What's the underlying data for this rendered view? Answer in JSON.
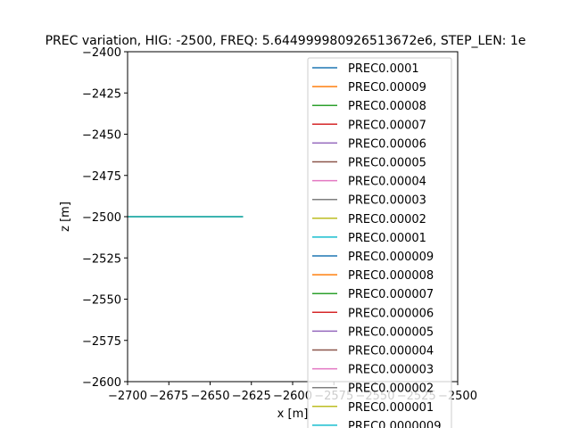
{
  "chart_data": {
    "type": "line",
    "title": "PREC variation, HIG: -2500, FREQ: 5.644999980926513672e6, STEP_LEN: 1e",
    "xlabel": "x [m]",
    "ylabel": "z [m]",
    "xlim": [
      -2700,
      -2500
    ],
    "ylim": [
      -2600,
      -2400
    ],
    "xticks": [
      -2700,
      -2675,
      -2650,
      -2625,
      -2600,
      -2575,
      -2550,
      -2525,
      -2500
    ],
    "xtick_labels": [
      "−2700",
      "−2675",
      "−2650",
      "−2625",
      "−2600",
      "−2575",
      "−2550",
      "−2525",
      "−2500"
    ],
    "yticks": [
      -2400,
      -2425,
      -2450,
      -2475,
      -2500,
      -2525,
      -2550,
      -2575,
      -2600
    ],
    "ytick_labels": [
      "−2400",
      "−2425",
      "−2450",
      "−2475",
      "−2500",
      "−2525",
      "−2550",
      "−2575",
      "−2600"
    ],
    "grid": false,
    "legend_position": "top-right",
    "series": [
      {
        "name": "PREC0.0001",
        "color": "#1f77b4",
        "x": [
          -2700,
          -2630
        ],
        "y": [
          -2500,
          -2500
        ]
      },
      {
        "name": "PREC0.00009",
        "color": "#ff7f0e",
        "x": [
          -2700,
          -2630
        ],
        "y": [
          -2500,
          -2500
        ]
      },
      {
        "name": "PREC0.00008",
        "color": "#2ca02c",
        "x": [
          -2700,
          -2630
        ],
        "y": [
          -2500,
          -2500
        ]
      },
      {
        "name": "PREC0.00007",
        "color": "#d62728",
        "x": [
          -2700,
          -2630
        ],
        "y": [
          -2500,
          -2500
        ]
      },
      {
        "name": "PREC0.00006",
        "color": "#9467bd",
        "x": [
          -2700,
          -2630
        ],
        "y": [
          -2500,
          -2500
        ]
      },
      {
        "name": "PREC0.00005",
        "color": "#8c564b",
        "x": [
          -2700,
          -2630
        ],
        "y": [
          -2500,
          -2500
        ]
      },
      {
        "name": "PREC0.00004",
        "color": "#e377c2",
        "x": [
          -2700,
          -2630
        ],
        "y": [
          -2500,
          -2500
        ]
      },
      {
        "name": "PREC0.00003",
        "color": "#7f7f7f",
        "x": [
          -2700,
          -2630
        ],
        "y": [
          -2500,
          -2500
        ]
      },
      {
        "name": "PREC0.00002",
        "color": "#bcbd22",
        "x": [
          -2700,
          -2630
        ],
        "y": [
          -2500,
          -2500
        ]
      },
      {
        "name": "PREC0.00001",
        "color": "#17becf",
        "x": [
          -2700,
          -2630
        ],
        "y": [
          -2500,
          -2500
        ]
      },
      {
        "name": "PREC0.000009",
        "color": "#1f77b4",
        "x": [
          -2700,
          -2630
        ],
        "y": [
          -2500,
          -2500
        ]
      },
      {
        "name": "PREC0.000008",
        "color": "#ff7f0e",
        "x": [
          -2700,
          -2630
        ],
        "y": [
          -2500,
          -2500
        ]
      },
      {
        "name": "PREC0.000007",
        "color": "#2ca02c",
        "x": [
          -2700,
          -2630
        ],
        "y": [
          -2500,
          -2500
        ]
      },
      {
        "name": "PREC0.000006",
        "color": "#d62728",
        "x": [
          -2700,
          -2630
        ],
        "y": [
          -2500,
          -2500
        ]
      },
      {
        "name": "PREC0.000005",
        "color": "#9467bd",
        "x": [
          -2700,
          -2630
        ],
        "y": [
          -2500,
          -2500
        ]
      },
      {
        "name": "PREC0.000004",
        "color": "#8c564b",
        "x": [
          -2700,
          -2630
        ],
        "y": [
          -2500,
          -2500
        ]
      },
      {
        "name": "PREC0.000003",
        "color": "#e377c2",
        "x": [
          -2700,
          -2630
        ],
        "y": [
          -2500,
          -2500
        ]
      },
      {
        "name": "PREC0.000002",
        "color": "#7f7f7f",
        "x": [
          -2700,
          -2630
        ],
        "y": [
          -2500,
          -2500
        ]
      },
      {
        "name": "PREC0.000001",
        "color": "#bcbd22",
        "x": [
          -2700,
          -2630
        ],
        "y": [
          -2500,
          -2500
        ]
      },
      {
        "name": "PREC0.0000009",
        "color": "#17becf",
        "x": [
          -2700,
          -2630
        ],
        "y": [
          -2500,
          -2500
        ]
      }
    ]
  }
}
